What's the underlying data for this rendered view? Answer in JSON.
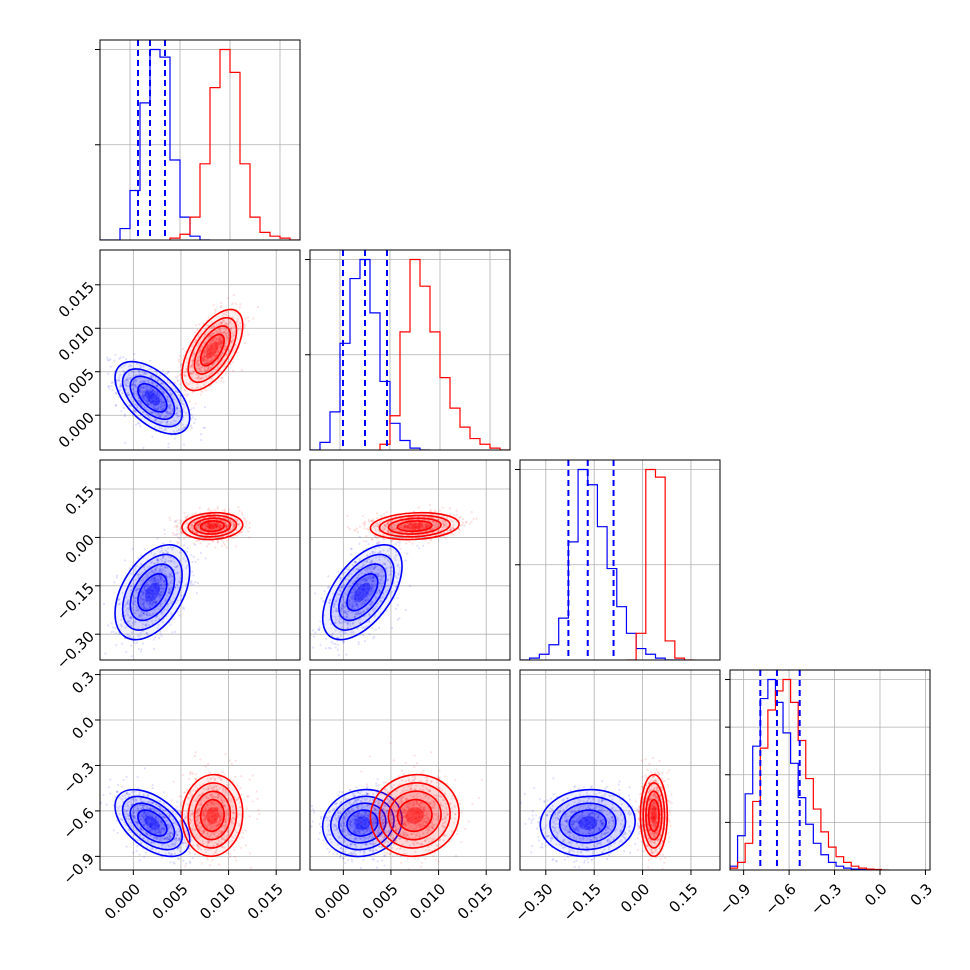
{
  "chart_data": {
    "type": "corner",
    "title": "",
    "grid": true,
    "colors": {
      "series_1": "#0000ff",
      "series_2": "#ff0000"
    },
    "series": [
      {
        "color": "#0000ff",
        "means": [
          0.002,
          0.002,
          -0.17,
          -0.68
        ],
        "stds": [
          0.0016,
          0.0017,
          0.06,
          0.09
        ],
        "quantiles": [
          [
            0.0008,
            0.002,
            0.0035
          ],
          [
            0.0003,
            0.0025,
            0.0047
          ],
          [
            -0.23,
            -0.17,
            -0.09
          ],
          [
            -0.79,
            -0.68,
            -0.53
          ]
        ]
      },
      {
        "color": "#ff0000",
        "means": [
          0.0083,
          0.0075,
          0.035,
          -0.63
        ],
        "stds": [
          0.0013,
          0.0019,
          0.017,
          0.11
        ]
      }
    ],
    "panels": [
      {
        "row": 0,
        "col": 0,
        "kind": "hist",
        "x_range": [
          -0.003,
          0.017
        ],
        "hist": [
          {
            "series": 0,
            "x": [
              -0.003,
              -0.002,
              -0.001,
              0.0,
              0.001,
              0.002,
              0.003,
              0.004,
              0.005,
              0.006,
              0.007
            ],
            "counts": [
              0,
              0,
              6,
              26,
              72,
              100,
              96,
              42,
              12,
              2,
              0
            ]
          },
          {
            "series": 1,
            "x": [
              0.004,
              0.005,
              0.006,
              0.007,
              0.008,
              0.009,
              0.01,
              0.011,
              0.012,
              0.013,
              0.014,
              0.015,
              0.016
            ],
            "counts": [
              1,
              3,
              12,
              40,
              80,
              100,
              88,
              40,
              12,
              4,
              2,
              1,
              0
            ]
          }
        ],
        "y_ticks": [
          0.5,
          1.0
        ]
      },
      {
        "row": 1,
        "col": 0,
        "kind": "scatter",
        "x_range": [
          -0.0035,
          0.0175
        ],
        "y_range": [
          -0.004,
          0.019
        ],
        "y_ticks": [
          0.0,
          0.005,
          0.01,
          0.015
        ],
        "y_tick_labels": [
          "0.000",
          "0.005",
          "0.010",
          "0.015"
        ]
      },
      {
        "row": 1,
        "col": 1,
        "kind": "hist",
        "x_range": [
          -0.003,
          0.017
        ],
        "hist": [
          {
            "series": 0,
            "x": [
              -0.003,
              -0.002,
              -0.001,
              0.0,
              0.001,
              0.002,
              0.003,
              0.004,
              0.005,
              0.006,
              0.007,
              0.008
            ],
            "counts": [
              0,
              4,
              20,
              56,
              90,
              100,
              72,
              36,
              14,
              5,
              1,
              0
            ]
          },
          {
            "series": 1,
            "x": [
              0.004,
              0.005,
              0.006,
              0.007,
              0.008,
              0.009,
              0.01,
              0.011,
              0.012,
              0.013,
              0.014,
              0.015,
              0.016
            ],
            "counts": [
              3,
              18,
              62,
              100,
              86,
              62,
              38,
              22,
              12,
              6,
              3,
              1,
              0
            ]
          }
        ],
        "y_ticks": [
          0.5,
          1.0
        ]
      },
      {
        "row": 2,
        "col": 0,
        "kind": "scatter",
        "x_range": [
          -0.0035,
          0.0175
        ],
        "y_range": [
          -0.38,
          0.24
        ],
        "y_ticks": [
          -0.3,
          -0.15,
          0.0,
          0.15
        ],
        "y_tick_labels": [
          "−0.30",
          "−0.15",
          "0.00",
          "0.15"
        ]
      },
      {
        "row": 2,
        "col": 1,
        "kind": "scatter",
        "x_range": [
          -0.0035,
          0.0175
        ],
        "y_range": [
          -0.38,
          0.24
        ]
      },
      {
        "row": 2,
        "col": 2,
        "kind": "hist",
        "x_range": [
          -0.38,
          0.24
        ],
        "hist": [
          {
            "series": 0,
            "x": [
              -0.38,
              -0.35,
              -0.32,
              -0.29,
              -0.26,
              -0.23,
              -0.2,
              -0.17,
              -0.14,
              -0.11,
              -0.08,
              -0.05,
              -0.02,
              0.01,
              0.04,
              0.07,
              0.1
            ],
            "counts": [
              0,
              1,
              3,
              8,
              22,
              62,
              100,
              92,
              70,
              48,
              28,
              14,
              6,
              3,
              1,
              0,
              0
            ]
          },
          {
            "series": 1,
            "x": [
              -0.05,
              -0.02,
              0.01,
              0.04,
              0.07,
              0.1,
              0.13
            ],
            "counts": [
              0,
              14,
              100,
              96,
              10,
              1,
              0
            ]
          }
        ],
        "y_ticks": [
          0.5,
          1.0
        ]
      },
      {
        "row": 3,
        "col": 0,
        "kind": "scatter",
        "x_range": [
          -0.0035,
          0.0175
        ],
        "y_range": [
          -0.99,
          0.33
        ],
        "y_ticks": [
          -0.9,
          -0.6,
          -0.3,
          0.0,
          0.3
        ],
        "y_tick_labels": [
          "−0.9",
          "−0.6",
          "−0.3",
          "0.0",
          "0.3"
        ],
        "x_ticks": [
          0.0,
          0.005,
          0.01,
          0.015
        ],
        "x_tick_labels": [
          "0.000",
          "0.005",
          "0.010",
          "0.015"
        ]
      },
      {
        "row": 3,
        "col": 1,
        "kind": "scatter",
        "x_range": [
          -0.0035,
          0.0175
        ],
        "y_range": [
          -0.99,
          0.33
        ],
        "x_ticks": [
          0.0,
          0.005,
          0.01,
          0.015
        ],
        "x_tick_labels": [
          "0.000",
          "0.005",
          "0.010",
          "0.015"
        ]
      },
      {
        "row": 3,
        "col": 2,
        "kind": "scatter",
        "x_range": [
          -0.38,
          0.24
        ],
        "y_range": [
          -0.99,
          0.33
        ],
        "x_ticks": [
          -0.3,
          -0.15,
          0.0,
          0.15
        ],
        "x_tick_labels": [
          "−0.30",
          "−0.15",
          "0.00",
          "0.15"
        ]
      },
      {
        "row": 3,
        "col": 3,
        "kind": "hist",
        "x_range": [
          -0.99,
          0.33
        ],
        "hist": [
          {
            "series": 0,
            "x": [
              -0.99,
              -0.94,
              -0.89,
              -0.84,
              -0.79,
              -0.74,
              -0.69,
              -0.64,
              -0.59,
              -0.54,
              -0.49,
              -0.44,
              -0.39,
              -0.34,
              -0.29,
              -0.24,
              -0.19,
              -0.14,
              -0.09
            ],
            "counts": [
              2,
              18,
              40,
              65,
              90,
              100,
              88,
              72,
              56,
              38,
              24,
              14,
              8,
              4,
              2,
              1,
              0.5,
              0.2,
              0
            ]
          },
          {
            "series": 1,
            "x": [
              -0.99,
              -0.94,
              -0.89,
              -0.84,
              -0.79,
              -0.74,
              -0.69,
              -0.64,
              -0.59,
              -0.54,
              -0.49,
              -0.44,
              -0.39,
              -0.34,
              -0.29,
              -0.24,
              -0.19,
              -0.14,
              -0.09,
              -0.04,
              0.01
            ],
            "counts": [
              1,
              4,
              14,
              36,
              64,
              84,
              94,
              100,
              88,
              68,
              48,
              32,
              20,
              12,
              7,
              4,
              2,
              1,
              0.5,
              0.3,
              0
            ]
          }
        ],
        "y_ticks": [
          0.25,
          0.5,
          0.75,
          1.0
        ],
        "x_ticks": [
          -0.9,
          -0.6,
          -0.3,
          0.0,
          0.3
        ],
        "x_tick_labels": [
          "−0.9",
          "−0.6",
          "−0.3",
          "0.0",
          "0.3"
        ]
      }
    ]
  }
}
